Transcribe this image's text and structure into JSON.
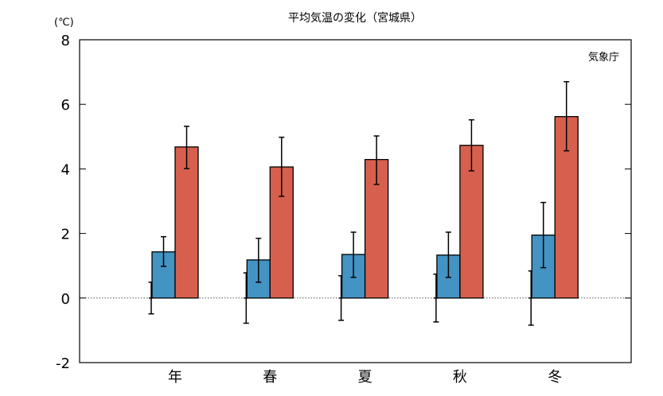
{
  "chart_data": {
    "type": "bar",
    "title": "平均気温の変化（宮城県）",
    "unit_label": "(℃)",
    "source_label": "気象庁",
    "xlabel": "",
    "ylabel": "(℃)",
    "ylim": [
      -2,
      8
    ],
    "yticks": [
      -2,
      0,
      2,
      4,
      6,
      8
    ],
    "grid": false,
    "categories": [
      "年",
      "春",
      "夏",
      "秋",
      "冬"
    ],
    "reference": {
      "name": "baseline",
      "values": [
        0,
        0,
        0,
        0,
        0
      ],
      "err": [
        0.49,
        0.78,
        0.69,
        0.74,
        0.84
      ]
    },
    "series": [
      {
        "name": "series-blue",
        "color": "#4393c3",
        "values": [
          1.43,
          1.18,
          1.35,
          1.33,
          1.95
        ],
        "err_low": [
          0.98,
          0.49,
          0.64,
          0.64,
          0.94
        ],
        "err_high": [
          1.9,
          1.85,
          2.04,
          2.04,
          2.96
        ]
      },
      {
        "name": "series-red",
        "color": "#d6604d",
        "values": [
          4.68,
          4.06,
          4.29,
          4.73,
          5.62
        ],
        "err_low": [
          4.01,
          3.15,
          3.52,
          3.94,
          4.56
        ],
        "err_high": [
          5.32,
          4.98,
          5.02,
          5.52,
          6.7
        ]
      }
    ]
  }
}
